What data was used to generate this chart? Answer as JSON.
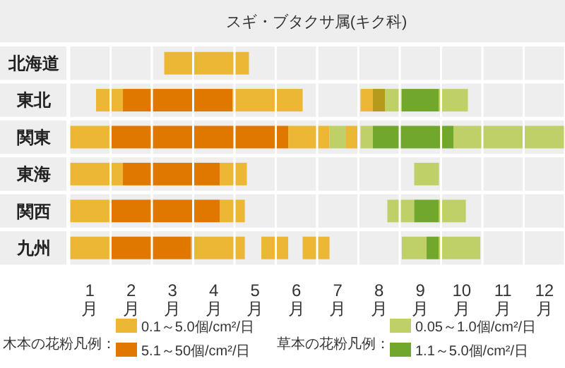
{
  "chart_data": {
    "type": "bar",
    "orientation": "horizontal",
    "title": "スギ・ブタクサ属(キク科)",
    "categories": [
      "北海道",
      "東北",
      "関東",
      "東海",
      "関西",
      "九州"
    ],
    "xlim": [
      0,
      12
    ],
    "xticks": [
      {
        "value": 0,
        "label": null
      },
      {
        "value": 0.5,
        "label": "1\n月"
      },
      {
        "value": 1,
        "label": null
      },
      {
        "value": 1.5,
        "label": "2\n月"
      },
      {
        "value": 2,
        "label": null
      },
      {
        "value": 2.5,
        "label": "3\n月"
      },
      {
        "value": 3,
        "label": null
      },
      {
        "value": 3.5,
        "label": "4\n月"
      },
      {
        "value": 4,
        "label": null
      },
      {
        "value": 4.5,
        "label": "5\n月"
      },
      {
        "value": 5,
        "label": null
      },
      {
        "value": 5.5,
        "label": "6\n月"
      },
      {
        "value": 6,
        "label": null
      },
      {
        "value": 6.5,
        "label": "7\n月"
      },
      {
        "value": 7,
        "label": null
      },
      {
        "value": 7.5,
        "label": "8\n月"
      },
      {
        "value": 8,
        "label": null
      },
      {
        "value": 8.5,
        "label": "9\n月"
      },
      {
        "value": 9,
        "label": null
      },
      {
        "value": 9.5,
        "label": "10\n月"
      },
      {
        "value": 10,
        "label": null
      },
      {
        "value": 10.5,
        "label": "11\n月"
      },
      {
        "value": 11,
        "label": null
      },
      {
        "value": 11.5,
        "label": "12\n月"
      },
      {
        "value": 12,
        "label": null
      }
    ],
    "grid": "x",
    "legend": "bottom",
    "annotations": [
      "木本の花粉凡例：",
      "草本の花粉凡例："
    ],
    "series": [
      {
        "name": "0.1～5.0個/cm²/日",
        "color": "#ebb734",
        "base": [
          2.3,
          0.65,
          0,
          0,
          0,
          0
        ],
        "values": [
          2.05,
          0.65,
          1.0,
          1.3,
          1.0,
          1.0
        ]
      },
      {
        "name": "5.1～50個/cm²/日",
        "color": "#e07800",
        "base": [
          null,
          1.3,
          1.0,
          1.3,
          1.0,
          1.0
        ],
        "values": [
          null,
          2.65,
          4.3,
          2.35,
          2.65,
          1.95
        ]
      },
      {
        "color": "#ebb734",
        "base": [
          null,
          3.95,
          5.3,
          3.65,
          3.65,
          2.95
        ],
        "values": [
          null,
          1.7,
          1.0,
          0.65,
          0.6,
          1.3
        ]
      },
      {
        "color": "#ebb734",
        "base": [
          null,
          7.05,
          6.7,
          null,
          null,
          4.65
        ],
        "values": [
          null,
          0.3,
          0.3,
          null,
          null,
          0.65
        ]
      },
      {
        "color": "#ebb734",
        "base": [
          null,
          null,
          null,
          null,
          null,
          5.65
        ],
        "values": [
          null,
          null,
          null,
          null,
          null,
          0.65
        ]
      },
      {
        "color": "#b59a1c",
        "base": [
          null,
          7.35,
          null,
          null,
          null,
          null
        ],
        "values": [
          null,
          0.3,
          null,
          null,
          null,
          null
        ]
      },
      {
        "name": "0.05～1.0個/cm²/日",
        "color": "#bfd068",
        "base": [
          null,
          7.65,
          6.3,
          8.35,
          7.7,
          8.05
        ],
        "values": [
          null,
          0.4,
          0.4,
          0.6,
          0.65,
          0.6
        ]
      },
      {
        "name": "1.1～5.0個/cm²/日",
        "color": "#72a72e",
        "base": [
          null,
          8.05,
          7.35,
          null,
          8.35,
          8.65
        ],
        "values": [
          null,
          0.9,
          1.95,
          null,
          0.6,
          0.3
        ]
      },
      {
        "color": "#bfd068",
        "base": [
          null,
          8.95,
          7.05,
          null,
          8.95,
          8.95
        ],
        "values": [
          null,
          0.7,
          0.3,
          null,
          0.65,
          1.0
        ]
      },
      {
        "color": "#bfd068",
        "base": [
          null,
          null,
          9.3,
          null,
          null,
          null
        ],
        "values": [
          null,
          null,
          2.7,
          null,
          null,
          null
        ]
      }
    ]
  }
}
